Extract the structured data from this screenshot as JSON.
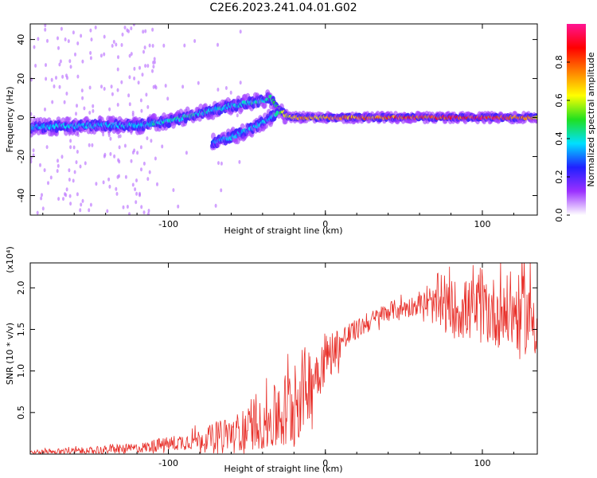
{
  "figure_title": "C2E6.2023.241.04.01.G02",
  "chart_data": [
    {
      "type": "heatmap",
      "title": "C2E6.2023.241.04.01.G02",
      "xlabel": "Height of straight line (km)",
      "ylabel": "Frequency (Hz)",
      "xlim": [
        -188,
        135
      ],
      "ylim": [
        -50,
        48
      ],
      "xticks": [
        -100,
        0,
        100
      ],
      "yticks": [
        -40,
        -20,
        0,
        20,
        40
      ],
      "xtick_labels": [
        "-100",
        "0",
        "100"
      ],
      "ytick_labels": [
        "-40",
        "-20",
        "0",
        "20",
        "40"
      ],
      "colorbar": {
        "label": "Normalized spectral amplitude",
        "range": [
          0.0,
          1.0
        ],
        "ticks": [
          0.0,
          0.2,
          0.4,
          0.6,
          0.8
        ],
        "tick_labels": [
          "0.0",
          "0.2",
          "0.4",
          "0.6",
          "0.8"
        ],
        "colors": [
          "#ffffff",
          "#9b30ff",
          "#2020ff",
          "#00e0ff",
          "#20e020",
          "#ffff00",
          "#ff8000",
          "#ff0000",
          "#ff1493"
        ]
      },
      "ridges": [
        {
          "name": "main",
          "x": [
            -188,
            -150,
            -120,
            -100,
            -80,
            -60,
            -45,
            -35,
            -30,
            -25,
            -20,
            0,
            50,
            100,
            135
          ],
          "y": [
            -5,
            -4,
            -4,
            -2,
            2,
            6,
            8,
            10,
            4,
            1,
            0,
            0,
            0,
            0,
            0
          ],
          "amplitude": [
            0.35,
            0.35,
            0.35,
            0.4,
            0.4,
            0.35,
            0.4,
            0.4,
            0.5,
            0.6,
            0.7,
            0.7,
            0.8,
            0.85,
            0.7
          ]
        },
        {
          "name": "branch",
          "x": [
            -72,
            -60,
            -45,
            -35,
            -30
          ],
          "y": [
            -13,
            -10,
            -5,
            0,
            3
          ],
          "amplitude": [
            0.3,
            0.35,
            0.35,
            0.35,
            0.4
          ]
        }
      ]
    },
    {
      "type": "line",
      "xlabel": "Height of straight line (km)",
      "ylabel": "SNR (10 * v/v)",
      "y_multiplier_label": "(x10⁴)",
      "xlim": [
        -188,
        135
      ],
      "ylim": [
        0,
        2.3
      ],
      "xticks": [
        -100,
        0,
        100
      ],
      "yticks": [
        0.5,
        1.0,
        1.5,
        2.0
      ],
      "xtick_labels": [
        "-100",
        "0",
        "100"
      ],
      "ytick_labels": [
        "0.5",
        "1.0",
        "1.5",
        "2.0"
      ],
      "series_color": "#e8302a",
      "trend": {
        "x": [
          -188,
          -150,
          -120,
          -100,
          -80,
          -60,
          -40,
          -25,
          -15,
          0,
          10,
          20,
          40,
          60,
          80,
          100,
          120,
          135
        ],
        "y": [
          0.02,
          0.04,
          0.07,
          0.12,
          0.18,
          0.25,
          0.35,
          0.5,
          0.75,
          1.15,
          1.35,
          1.5,
          1.72,
          1.8,
          1.75,
          1.72,
          1.7,
          1.65
        ]
      },
      "noise_amplitude": {
        "x": [
          -188,
          -120,
          -80,
          -40,
          -20,
          0,
          20,
          60,
          80,
          135
        ],
        "y": [
          0.03,
          0.06,
          0.12,
          0.3,
          0.6,
          0.3,
          0.12,
          0.12,
          0.35,
          0.5
        ]
      }
    }
  ]
}
